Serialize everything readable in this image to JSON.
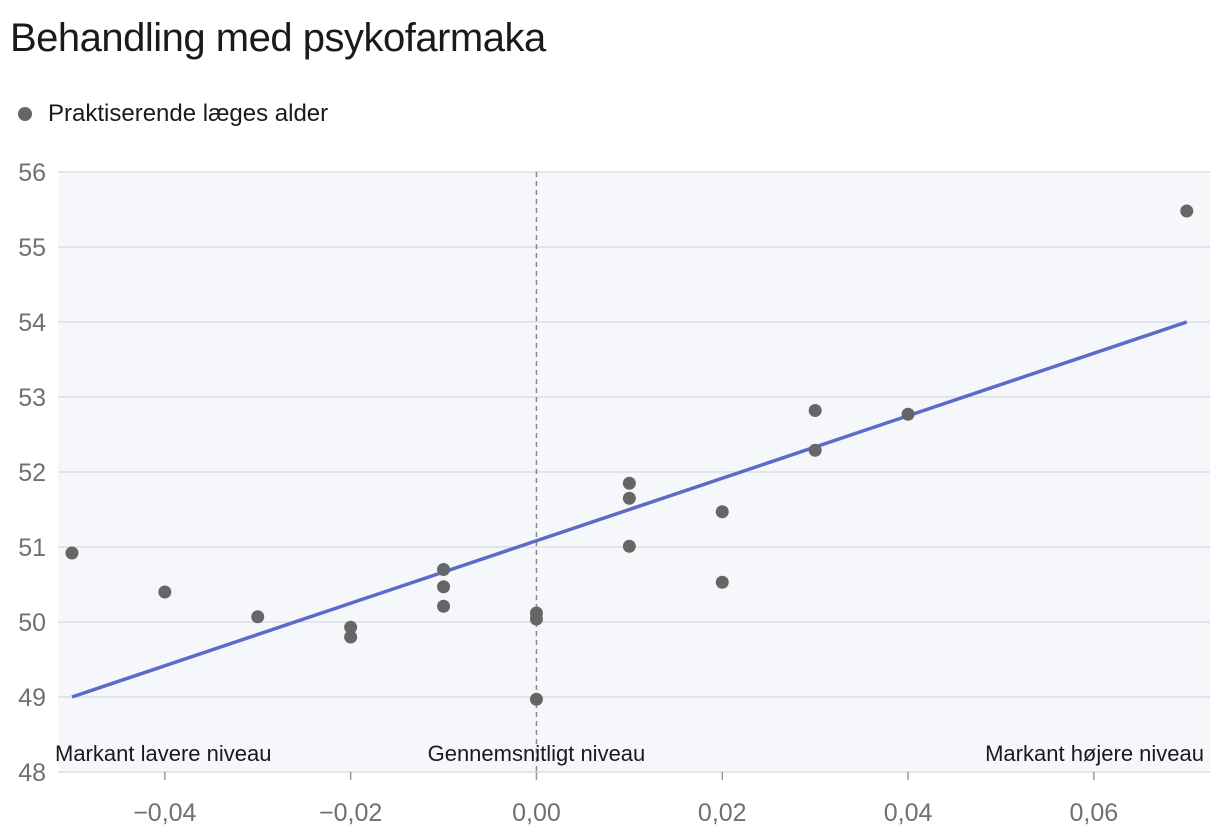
{
  "chart_data": {
    "type": "scatter",
    "title": "Behandling med psykofarmaka",
    "legend": {
      "position": "top-left",
      "entries": [
        "Praktiserende læges alder"
      ]
    },
    "xlim": [
      -0.0515,
      0.0725
    ],
    "ylim": [
      48,
      56
    ],
    "x_ticks": [
      -0.04,
      -0.02,
      0.0,
      0.02,
      0.04,
      0.06
    ],
    "x_tick_labels": [
      "−0,04",
      "−0,02",
      "0,00",
      "0,02",
      "0,04",
      "0,06"
    ],
    "y_ticks": [
      48,
      49,
      50,
      51,
      52,
      53,
      54,
      55,
      56
    ],
    "y_tick_labels": [
      "48",
      "49",
      "50",
      "51",
      "52",
      "53",
      "54",
      "55",
      "56"
    ],
    "grid": "horizontal",
    "series": [
      {
        "name": "Praktiserende læges alder",
        "points": [
          {
            "x": -0.05,
            "y": 50.92
          },
          {
            "x": -0.04,
            "y": 50.4
          },
          {
            "x": -0.03,
            "y": 50.07
          },
          {
            "x": -0.02,
            "y": 49.93
          },
          {
            "x": -0.02,
            "y": 49.8
          },
          {
            "x": -0.01,
            "y": 50.7
          },
          {
            "x": -0.01,
            "y": 50.47
          },
          {
            "x": -0.01,
            "y": 50.21
          },
          {
            "x": 0.0,
            "y": 50.12
          },
          {
            "x": 0.0,
            "y": 50.04
          },
          {
            "x": 0.0,
            "y": 48.97
          },
          {
            "x": 0.01,
            "y": 51.85
          },
          {
            "x": 0.01,
            "y": 51.65
          },
          {
            "x": 0.01,
            "y": 51.01
          },
          {
            "x": 0.02,
            "y": 51.47
          },
          {
            "x": 0.02,
            "y": 50.53
          },
          {
            "x": 0.03,
            "y": 52.82
          },
          {
            "x": 0.03,
            "y": 52.29
          },
          {
            "x": 0.04,
            "y": 52.77
          },
          {
            "x": 0.07,
            "y": 55.48
          }
        ]
      }
    ],
    "trendline": {
      "x": [
        -0.05,
        0.07
      ],
      "y": [
        49.0,
        54.0
      ]
    },
    "reference_line": {
      "x": 0.0,
      "style": "dashed"
    },
    "annotations": [
      {
        "text": "Markant lavere niveau",
        "anchor": "left"
      },
      {
        "text": "Gennemsnitligt niveau",
        "anchor": "center"
      },
      {
        "text": "Markant højere niveau",
        "anchor": "right"
      }
    ],
    "colors": {
      "points": "#666666",
      "trendline": "#5b6cc7",
      "plot_background": "#f6f7fb",
      "grid": "#dcdde3",
      "reference_line": "#888888"
    }
  }
}
